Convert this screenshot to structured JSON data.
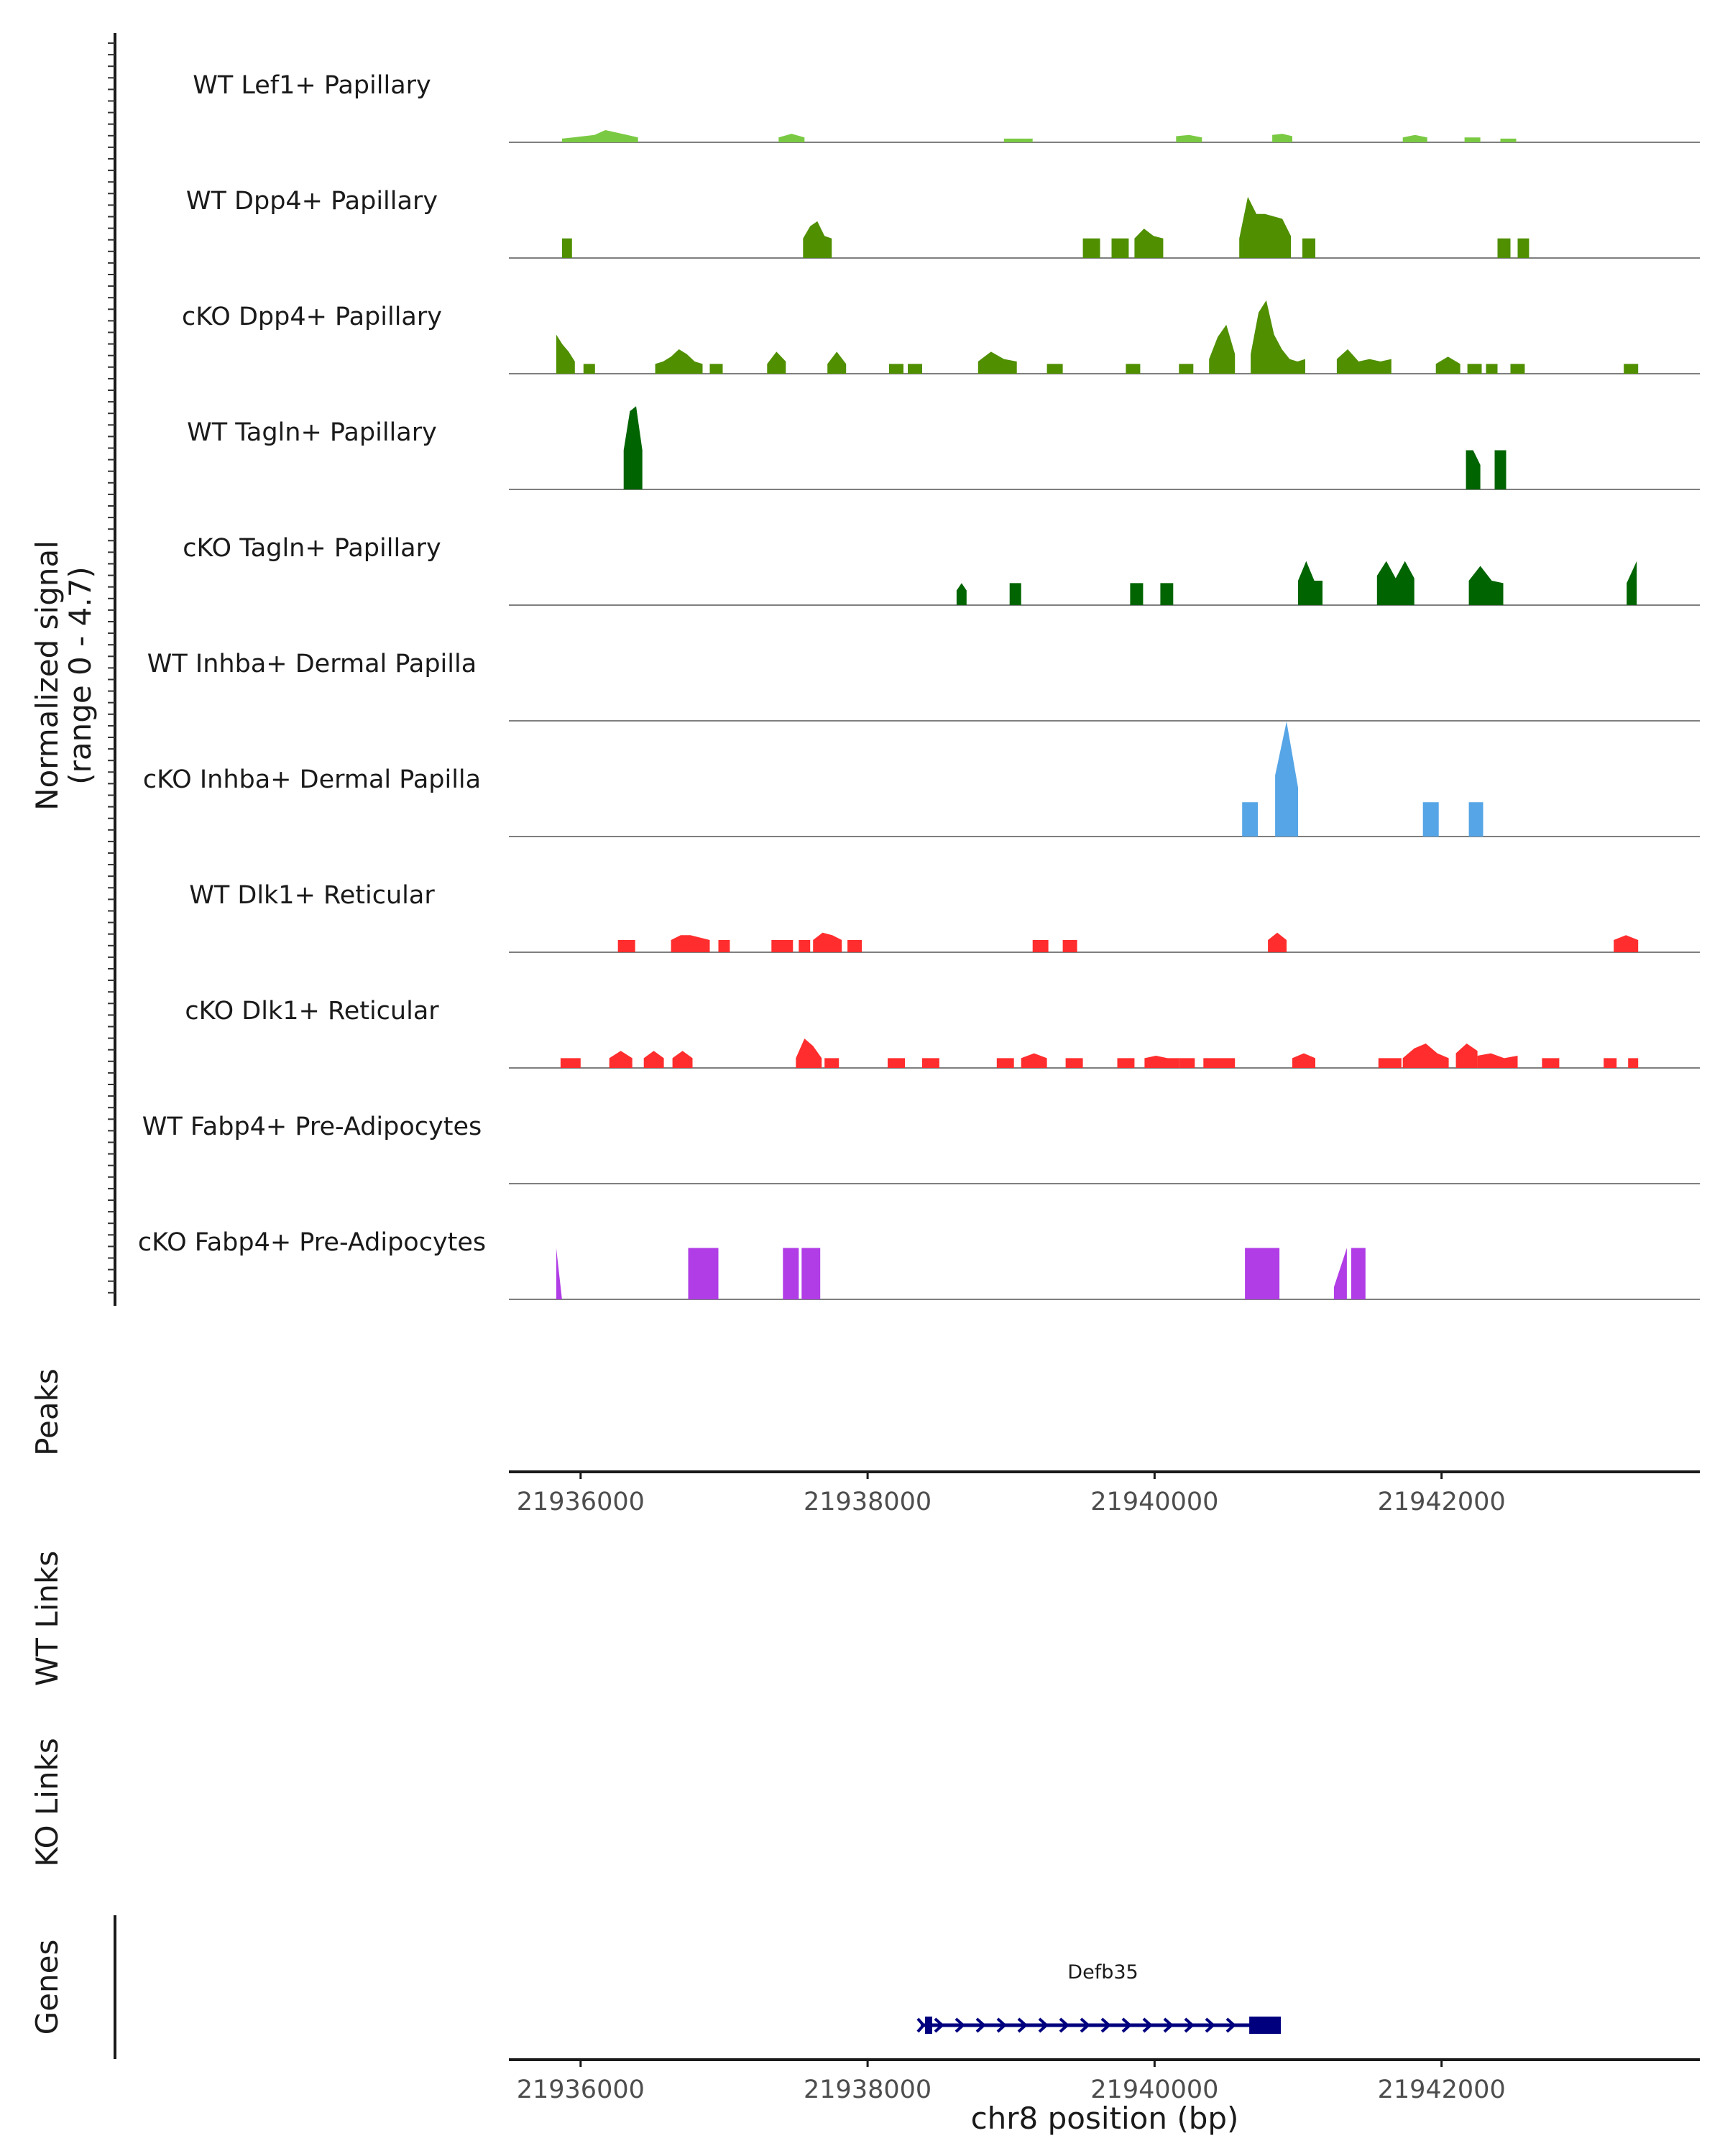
{
  "chart_data": {
    "type": "area",
    "title": "",
    "chromosome": "chr8",
    "xlim": [
      21935500,
      21943800
    ],
    "xticks": [
      21936000,
      21938000,
      21940000,
      21942000
    ],
    "xlabel": "chr8 position (bp)",
    "ylabel": "Normalized signal",
    "ylabel_range": "(range 0 - 4.7)",
    "ylim": [
      0,
      4.7
    ],
    "section_labels": {
      "peaks": "Peaks",
      "wt_links": "WT Links",
      "ko_links": "KO Links",
      "genes": "Genes"
    },
    "tracks": [
      {
        "name": "WT Lef1+ Papillary",
        "color": "#7ac943",
        "regions": [
          {
            "start": 21935870,
            "end": 21936400,
            "values": [
              0.15,
              0.2,
              0.25,
              0.3,
              0.5,
              0.4,
              0.3,
              0.2
            ]
          },
          {
            "start": 21937380,
            "end": 21937560,
            "values": [
              0.2,
              0.35,
              0.2
            ]
          },
          {
            "start": 21938950,
            "end": 21939150,
            "values": [
              0.15,
              0.15
            ]
          },
          {
            "start": 21940150,
            "end": 21940330,
            "values": [
              0.25,
              0.3,
              0.2
            ]
          },
          {
            "start": 21940820,
            "end": 21940960,
            "values": [
              0.3,
              0.35,
              0.25
            ]
          },
          {
            "start": 21941730,
            "end": 21941900,
            "values": [
              0.2,
              0.3,
              0.2
            ]
          },
          {
            "start": 21942160,
            "end": 21942270,
            "values": [
              0.2,
              0.2
            ]
          },
          {
            "start": 21942410,
            "end": 21942520,
            "values": [
              0.15,
              0.15
            ]
          }
        ]
      },
      {
        "name": "WT Dpp4+ Papillary",
        "color": "#4f8f00",
        "regions": [
          {
            "start": 21935870,
            "end": 21935940,
            "values": [
              0.8,
              0.8
            ]
          },
          {
            "start": 21937550,
            "end": 21937750,
            "values": [
              0.8,
              1.3,
              1.5,
              0.9,
              0.8
            ]
          },
          {
            "start": 21939500,
            "end": 21939620,
            "values": [
              0.8,
              0.8
            ]
          },
          {
            "start": 21939700,
            "end": 21939820,
            "values": [
              0.8,
              0.8
            ]
          },
          {
            "start": 21939860,
            "end": 21940060,
            "values": [
              0.8,
              1.2,
              0.9,
              0.8
            ]
          },
          {
            "start": 21940590,
            "end": 21940950,
            "values": [
              0.8,
              2.5,
              1.8,
              1.8,
              1.7,
              1.6,
              0.9
            ]
          },
          {
            "start": 21941030,
            "end": 21941120,
            "values": [
              0.8,
              0.8
            ]
          },
          {
            "start": 21942390,
            "end": 21942480,
            "values": [
              0.8,
              0.8
            ]
          },
          {
            "start": 21942530,
            "end": 21942610,
            "values": [
              0.8,
              0.8
            ]
          }
        ]
      },
      {
        "name": "cKO Dpp4+ Papillary",
        "color": "#4f8f00",
        "regions": [
          {
            "start": 21935830,
            "end": 21935960,
            "values": [
              1.6,
              1.2,
              0.9,
              0.5
            ]
          },
          {
            "start": 21936020,
            "end": 21936100,
            "values": [
              0.4,
              0.4
            ]
          },
          {
            "start": 21936520,
            "end": 21936850,
            "values": [
              0.4,
              0.5,
              0.7,
              1.0,
              0.8,
              0.5,
              0.4
            ]
          },
          {
            "start": 21936900,
            "end": 21936990,
            "values": [
              0.4,
              0.4
            ]
          },
          {
            "start": 21937300,
            "end": 21937430,
            "values": [
              0.4,
              0.9,
              0.5
            ]
          },
          {
            "start": 21937720,
            "end": 21937850,
            "values": [
              0.4,
              0.9,
              0.4
            ]
          },
          {
            "start": 21938150,
            "end": 21938250,
            "values": [
              0.4,
              0.4
            ]
          },
          {
            "start": 21938280,
            "end": 21938380,
            "values": [
              0.4,
              0.4
            ]
          },
          {
            "start": 21938770,
            "end": 21939040,
            "values": [
              0.5,
              0.9,
              0.6,
              0.5
            ]
          },
          {
            "start": 21939250,
            "end": 21939360,
            "values": [
              0.4,
              0.4
            ]
          },
          {
            "start": 21939800,
            "end": 21939900,
            "values": [
              0.4,
              0.4
            ]
          },
          {
            "start": 21940170,
            "end": 21940270,
            "values": [
              0.4,
              0.4
            ]
          },
          {
            "start": 21940380,
            "end": 21940560,
            "values": [
              0.6,
              1.5,
              2.0,
              0.8
            ]
          },
          {
            "start": 21940670,
            "end": 21941050,
            "values": [
              0.8,
              2.5,
              3.0,
              1.6,
              1.0,
              0.6,
              0.5,
              0.6
            ]
          },
          {
            "start": 21941270,
            "end": 21941650,
            "values": [
              0.6,
              1.0,
              0.5,
              0.6,
              0.5,
              0.6
            ]
          },
          {
            "start": 21941960,
            "end": 21942130,
            "values": [
              0.4,
              0.7,
              0.4
            ]
          },
          {
            "start": 21942180,
            "end": 21942280,
            "values": [
              0.4,
              0.4
            ]
          },
          {
            "start": 21942310,
            "end": 21942390,
            "values": [
              0.4,
              0.4
            ]
          },
          {
            "start": 21942480,
            "end": 21942580,
            "values": [
              0.4,
              0.4
            ]
          },
          {
            "start": 21943270,
            "end": 21943370,
            "values": [
              0.4,
              0.4
            ]
          }
        ]
      },
      {
        "name": "WT Tagln+ Papillary",
        "color": "#006400",
        "regions": [
          {
            "start": 21936300,
            "end": 21936430,
            "values": [
              1.6,
              3.2,
              3.4,
              1.6
            ]
          },
          {
            "start": 21942170,
            "end": 21942270,
            "values": [
              1.6,
              1.6,
              1.0
            ]
          },
          {
            "start": 21942370,
            "end": 21942450,
            "values": [
              1.6,
              1.6
            ]
          }
        ]
      },
      {
        "name": "cKO Tagln+ Papillary",
        "color": "#006400",
        "regions": [
          {
            "start": 21938620,
            "end": 21938690,
            "values": [
              0.6,
              0.9,
              0.6
            ]
          },
          {
            "start": 21938990,
            "end": 21939070,
            "values": [
              0.9,
              0.9
            ]
          },
          {
            "start": 21939830,
            "end": 21939920,
            "values": [
              0.9,
              0.9
            ]
          },
          {
            "start": 21940040,
            "end": 21940130,
            "values": [
              0.9,
              0.9
            ]
          },
          {
            "start": 21941000,
            "end": 21941170,
            "values": [
              1.0,
              1.8,
              1.0,
              1.0
            ]
          },
          {
            "start": 21941550,
            "end": 21941810,
            "values": [
              1.2,
              1.8,
              1.1,
              1.8,
              1.1
            ]
          },
          {
            "start": 21942190,
            "end": 21942430,
            "values": [
              1.0,
              1.6,
              1.0,
              0.9
            ]
          },
          {
            "start": 21943290,
            "end": 21943360,
            "values": [
              0.9,
              1.8
            ]
          }
        ]
      },
      {
        "name": "WT Inhba+ Dermal Papilla",
        "color": "#56a5e6",
        "regions": []
      },
      {
        "name": "cKO Inhba+ Dermal Papilla",
        "color": "#56a5e6",
        "regions": [
          {
            "start": 21940610,
            "end": 21940720,
            "values": [
              1.4,
              1.4
            ]
          },
          {
            "start": 21940840,
            "end": 21941000,
            "values": [
              2.5,
              4.7,
              2.0
            ]
          },
          {
            "start": 21941870,
            "end": 21941980,
            "values": [
              1.4,
              1.4
            ]
          },
          {
            "start": 21942190,
            "end": 21942290,
            "values": [
              1.4,
              1.4
            ]
          }
        ]
      },
      {
        "name": "WT Dlk1+ Reticular",
        "color": "#ff2d2d",
        "regions": [
          {
            "start": 21936260,
            "end": 21936380,
            "values": [
              0.5,
              0.5
            ]
          },
          {
            "start": 21936630,
            "end": 21936900,
            "values": [
              0.5,
              0.7,
              0.7,
              0.6,
              0.5
            ]
          },
          {
            "start": 21936960,
            "end": 21937040,
            "values": [
              0.5,
              0.5
            ]
          },
          {
            "start": 21937330,
            "end": 21937480,
            "values": [
              0.5,
              0.5
            ]
          },
          {
            "start": 21937520,
            "end": 21937600,
            "values": [
              0.5,
              0.5
            ]
          },
          {
            "start": 21937620,
            "end": 21937820,
            "values": [
              0.5,
              0.8,
              0.7,
              0.5
            ]
          },
          {
            "start": 21937860,
            "end": 21937960,
            "values": [
              0.5,
              0.5
            ]
          },
          {
            "start": 21939150,
            "end": 21939260,
            "values": [
              0.5,
              0.5
            ]
          },
          {
            "start": 21939360,
            "end": 21939460,
            "values": [
              0.5,
              0.5
            ]
          },
          {
            "start": 21940790,
            "end": 21940920,
            "values": [
              0.5,
              0.8,
              0.5
            ]
          },
          {
            "start": 21943200,
            "end": 21943370,
            "values": [
              0.5,
              0.7,
              0.5
            ]
          }
        ]
      },
      {
        "name": "cKO Dlk1+ Reticular",
        "color": "#ff2d2d",
        "regions": [
          {
            "start": 21935860,
            "end": 21936000,
            "values": [
              0.4,
              0.4
            ]
          },
          {
            "start": 21936200,
            "end": 21936360,
            "values": [
              0.4,
              0.7,
              0.4
            ]
          },
          {
            "start": 21936440,
            "end": 21936580,
            "values": [
              0.4,
              0.7,
              0.4
            ]
          },
          {
            "start": 21936640,
            "end": 21936780,
            "values": [
              0.4,
              0.7,
              0.4
            ]
          },
          {
            "start": 21937500,
            "end": 21937680,
            "values": [
              0.4,
              1.2,
              0.9,
              0.4
            ]
          },
          {
            "start": 21937700,
            "end": 21937800,
            "values": [
              0.4,
              0.4
            ]
          },
          {
            "start": 21938140,
            "end": 21938260,
            "values": [
              0.4,
              0.4
            ]
          },
          {
            "start": 21938380,
            "end": 21938500,
            "values": [
              0.4,
              0.4
            ]
          },
          {
            "start": 21938900,
            "end": 21939020,
            "values": [
              0.4,
              0.4
            ]
          },
          {
            "start": 21939070,
            "end": 21939250,
            "values": [
              0.4,
              0.6,
              0.4
            ]
          },
          {
            "start": 21939380,
            "end": 21939500,
            "values": [
              0.4,
              0.4
            ]
          },
          {
            "start": 21939740,
            "end": 21939860,
            "values": [
              0.4,
              0.4
            ]
          },
          {
            "start": 21939930,
            "end": 21940170,
            "values": [
              0.4,
              0.5,
              0.4,
              0.4
            ]
          },
          {
            "start": 21940170,
            "end": 21940280,
            "values": [
              0.4,
              0.4
            ]
          },
          {
            "start": 21940340,
            "end": 21940560,
            "values": [
              0.4,
              0.4
            ]
          },
          {
            "start": 21940960,
            "end": 21941120,
            "values": [
              0.4,
              0.6,
              0.4
            ]
          },
          {
            "start": 21941560,
            "end": 21941720,
            "values": [
              0.4,
              0.4
            ]
          },
          {
            "start": 21941730,
            "end": 21942050,
            "values": [
              0.4,
              0.8,
              1.0,
              0.6,
              0.4
            ]
          },
          {
            "start": 21942100,
            "end": 21942250,
            "values": [
              0.6,
              1.0,
              0.7
            ]
          },
          {
            "start": 21942250,
            "end": 21942530,
            "values": [
              0.5,
              0.6,
              0.4,
              0.5
            ]
          },
          {
            "start": 21942700,
            "end": 21942820,
            "values": [
              0.4,
              0.4
            ]
          },
          {
            "start": 21943130,
            "end": 21943220,
            "values": [
              0.4,
              0.4
            ]
          },
          {
            "start": 21943300,
            "end": 21943370,
            "values": [
              0.4,
              0.4
            ]
          }
        ]
      },
      {
        "name": "WT Fabp4+ Pre-Adipocytes",
        "color": "#b03de6",
        "regions": []
      },
      {
        "name": "cKO Fabp4+ Pre-Adipocytes",
        "color": "#b03de6",
        "regions": [
          {
            "start": 21935830,
            "end": 21935870,
            "values": [
              2.1,
              0
            ]
          },
          {
            "start": 21936750,
            "end": 21936960,
            "values": [
              2.1,
              2.1
            ]
          },
          {
            "start": 21937410,
            "end": 21937520,
            "values": [
              2.1,
              2.1
            ]
          },
          {
            "start": 21937540,
            "end": 21937670,
            "values": [
              2.1,
              2.1
            ]
          },
          {
            "start": 21940630,
            "end": 21940870,
            "values": [
              2.1,
              2.1
            ]
          },
          {
            "start": 21941250,
            "end": 21941340,
            "values": [
              0.5,
              2.1
            ]
          },
          {
            "start": 21941370,
            "end": 21941470,
            "values": [
              2.1,
              2.1
            ]
          }
        ]
      }
    ],
    "genes": [
      {
        "name": "Defb35",
        "start": 21938400,
        "end": 21940880,
        "strand": "+",
        "color": "#00007f",
        "exons": [
          {
            "start": 21938400,
            "end": 21938450
          },
          {
            "start": 21940660,
            "end": 21940880
          }
        ]
      }
    ]
  }
}
